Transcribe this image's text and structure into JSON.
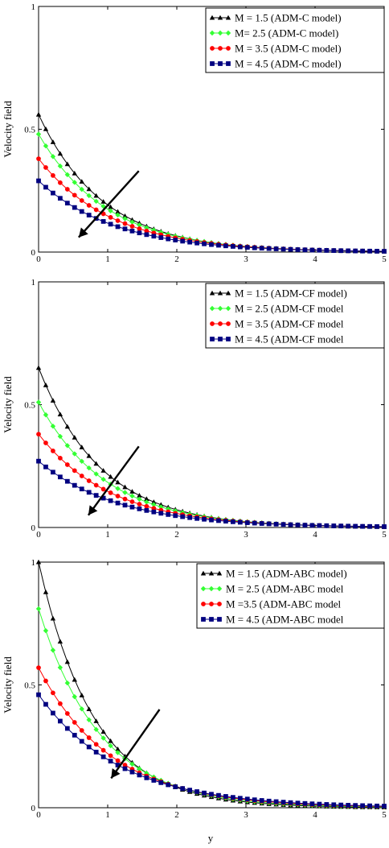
{
  "figure": {
    "xlabel": "y"
  },
  "chart_data": [
    {
      "type": "line",
      "title": "",
      "xlabel": "",
      "ylabel": "Velocity field",
      "xlim": [
        0,
        5
      ],
      "ylim": [
        0,
        1
      ],
      "xticks": [
        "0",
        "1",
        "2",
        "3",
        "4",
        "5"
      ],
      "yticks": [
        "0",
        "0.5",
        "1"
      ],
      "grid": false,
      "legend": "top-right",
      "annotation": "arrow indicating decreasing velocity with increasing M",
      "series": [
        {
          "name": "M = 1.5  (ADM-C model)",
          "color": "#000000",
          "marker": "triangle",
          "x0": 0,
          "y0": 0.56,
          "decay": 1.07
        },
        {
          "name": "M= 2.5  (ADM-C model)",
          "color": "#33ff33",
          "marker": "diamond",
          "x0": 0,
          "y0": 0.48,
          "decay": 1.01
        },
        {
          "name": "M = 3.5  (ADM-C model)",
          "color": "#ff0000",
          "marker": "circle",
          "x0": 0,
          "y0": 0.38,
          "decay": 0.95
        },
        {
          "name": "M = 4.5  (ADM-C model)",
          "color": "#000080",
          "marker": "square",
          "x0": 0,
          "y0": 0.29,
          "decay": 0.9
        }
      ]
    },
    {
      "type": "line",
      "title": "",
      "xlabel": "",
      "ylabel": "Velocity field",
      "xlim": [
        0,
        5
      ],
      "ylim": [
        0,
        1
      ],
      "xticks": [
        "0",
        "1",
        "2",
        "3",
        "4",
        "5"
      ],
      "yticks": [
        "0",
        "0.5",
        "1"
      ],
      "grid": false,
      "legend": "top-right",
      "annotation": "arrow indicating decreasing velocity with increasing M",
      "series": [
        {
          "name": "M = 1.5 (ADM-CF model)",
          "color": "#000000",
          "marker": "triangle",
          "x0": 0,
          "y0": 0.65,
          "decay": 1.1
        },
        {
          "name": "M = 2.5 (ADM-CF model",
          "color": "#33ff33",
          "marker": "diamond",
          "x0": 0,
          "y0": 0.51,
          "decay": 1.02
        },
        {
          "name": "M = 3.5 (ADM-CF model",
          "color": "#ff0000",
          "marker": "circle",
          "x0": 0,
          "y0": 0.38,
          "decay": 0.95
        },
        {
          "name": "M = 4.5 (ADM-CF model",
          "color": "#000080",
          "marker": "square",
          "x0": 0,
          "y0": 0.27,
          "decay": 0.87
        }
      ]
    },
    {
      "type": "line",
      "title": "",
      "xlabel": "y",
      "ylabel": "Velocity field",
      "xlim": [
        0,
        5
      ],
      "ylim": [
        0,
        1
      ],
      "xticks": [
        "0",
        "1",
        "2",
        "3",
        "4",
        "5"
      ],
      "yticks": [
        "0",
        "0.5",
        "1"
      ],
      "grid": false,
      "legend": "top-right",
      "annotation": "arrow indicating decreasing velocity with increasing M",
      "series": [
        {
          "name": "M = 1.5 (ADM-ABC model)",
          "color": "#000000",
          "marker": "triangle",
          "x0": 0,
          "y0": 1.0,
          "decay": 1.25
        },
        {
          "name": "M = 2.5 (ADM-ABC model",
          "color": "#33ff33",
          "marker": "diamond",
          "x0": 0,
          "y0": 0.81,
          "decay": 1.12
        },
        {
          "name": "M =3.5 (ADM-ABC model",
          "color": "#ff0000",
          "marker": "circle",
          "x0": 0,
          "y0": 0.57,
          "decay": 0.95
        },
        {
          "name": "M = 4.5 (ADM-ABC model",
          "color": "#000080",
          "marker": "square",
          "x0": 0,
          "y0": 0.46,
          "decay": 0.85
        }
      ]
    }
  ]
}
